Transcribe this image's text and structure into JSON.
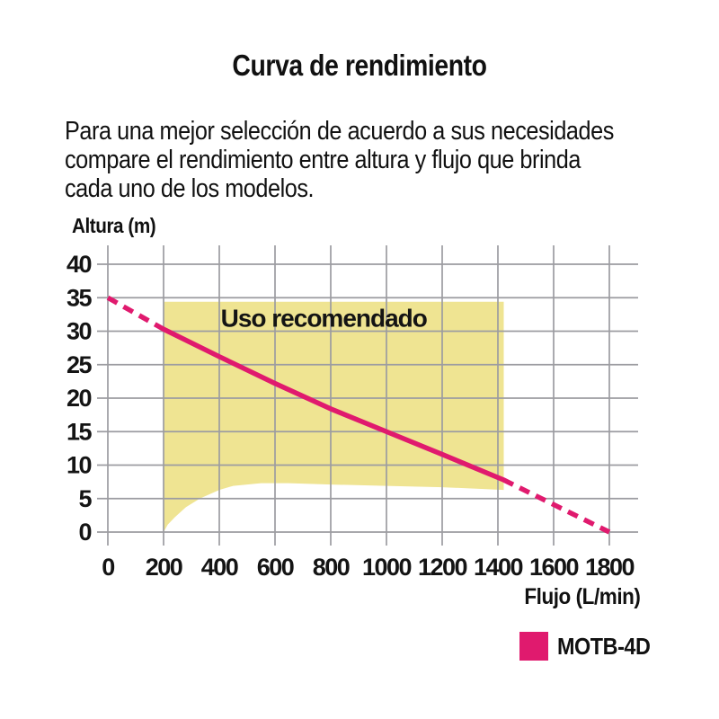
{
  "header": {
    "title": "Curva de rendimiento",
    "description_lines": [
      "Para una mejor selección de acuerdo a sus necesidades",
      "compare el rendimiento entre altura y flujo que brinda",
      "cada uno de los modelos."
    ]
  },
  "chart_data": {
    "type": "line",
    "title": "Curva de rendimiento",
    "xlabel": "Flujo (L/min)",
    "ylabel": "Altura (m)",
    "xlim": [
      0,
      1800
    ],
    "ylim": [
      0,
      40
    ],
    "x_ticks": [
      0,
      200,
      400,
      600,
      800,
      1000,
      1200,
      1400,
      1600,
      1800
    ],
    "y_ticks": [
      0,
      5,
      10,
      15,
      20,
      25,
      30,
      35,
      40
    ],
    "grid": true,
    "colors": {
      "grid": "#9c9ca1",
      "text": "#141414",
      "background": "#ffffff"
    },
    "series": [
      {
        "name": "MOTB-4D",
        "color": "#e01a6e",
        "segments": [
          {
            "style": "dashed",
            "points": [
              [
                0,
                35
              ],
              [
                200,
                30.3
              ]
            ]
          },
          {
            "style": "solid",
            "points": [
              [
                200,
                30.3
              ],
              [
                400,
                26.2
              ],
              [
                600,
                22.2
              ],
              [
                800,
                18.4
              ],
              [
                1000,
                15.0
              ],
              [
                1200,
                11.6
              ],
              [
                1420,
                7.8
              ]
            ]
          },
          {
            "style": "dashed",
            "points": [
              [
                1420,
                7.8
              ],
              [
                1800,
                0
              ]
            ]
          }
        ]
      }
    ],
    "recommended_region": {
      "label": "Uso recomendado",
      "fill": "#efe492",
      "polygon": [
        [
          200,
          34.4
        ],
        [
          1421,
          34.4
        ],
        [
          1421,
          6.3
        ],
        [
          1200,
          6.7
        ],
        [
          1000,
          6.9
        ],
        [
          800,
          7.1
        ],
        [
          650,
          7.3
        ],
        [
          550,
          7.3
        ],
        [
          450,
          6.9
        ],
        [
          400,
          6.3
        ],
        [
          330,
          5.0
        ],
        [
          280,
          3.7
        ],
        [
          240,
          2.2
        ],
        [
          215,
          1.1
        ],
        [
          200,
          0
        ]
      ],
      "label_anchor": {
        "x": 775,
        "y": 32
      }
    },
    "legend": {
      "position": "bottom-right",
      "items": [
        {
          "label": "MOTB-4D",
          "color": "#e01a6e"
        }
      ]
    }
  }
}
